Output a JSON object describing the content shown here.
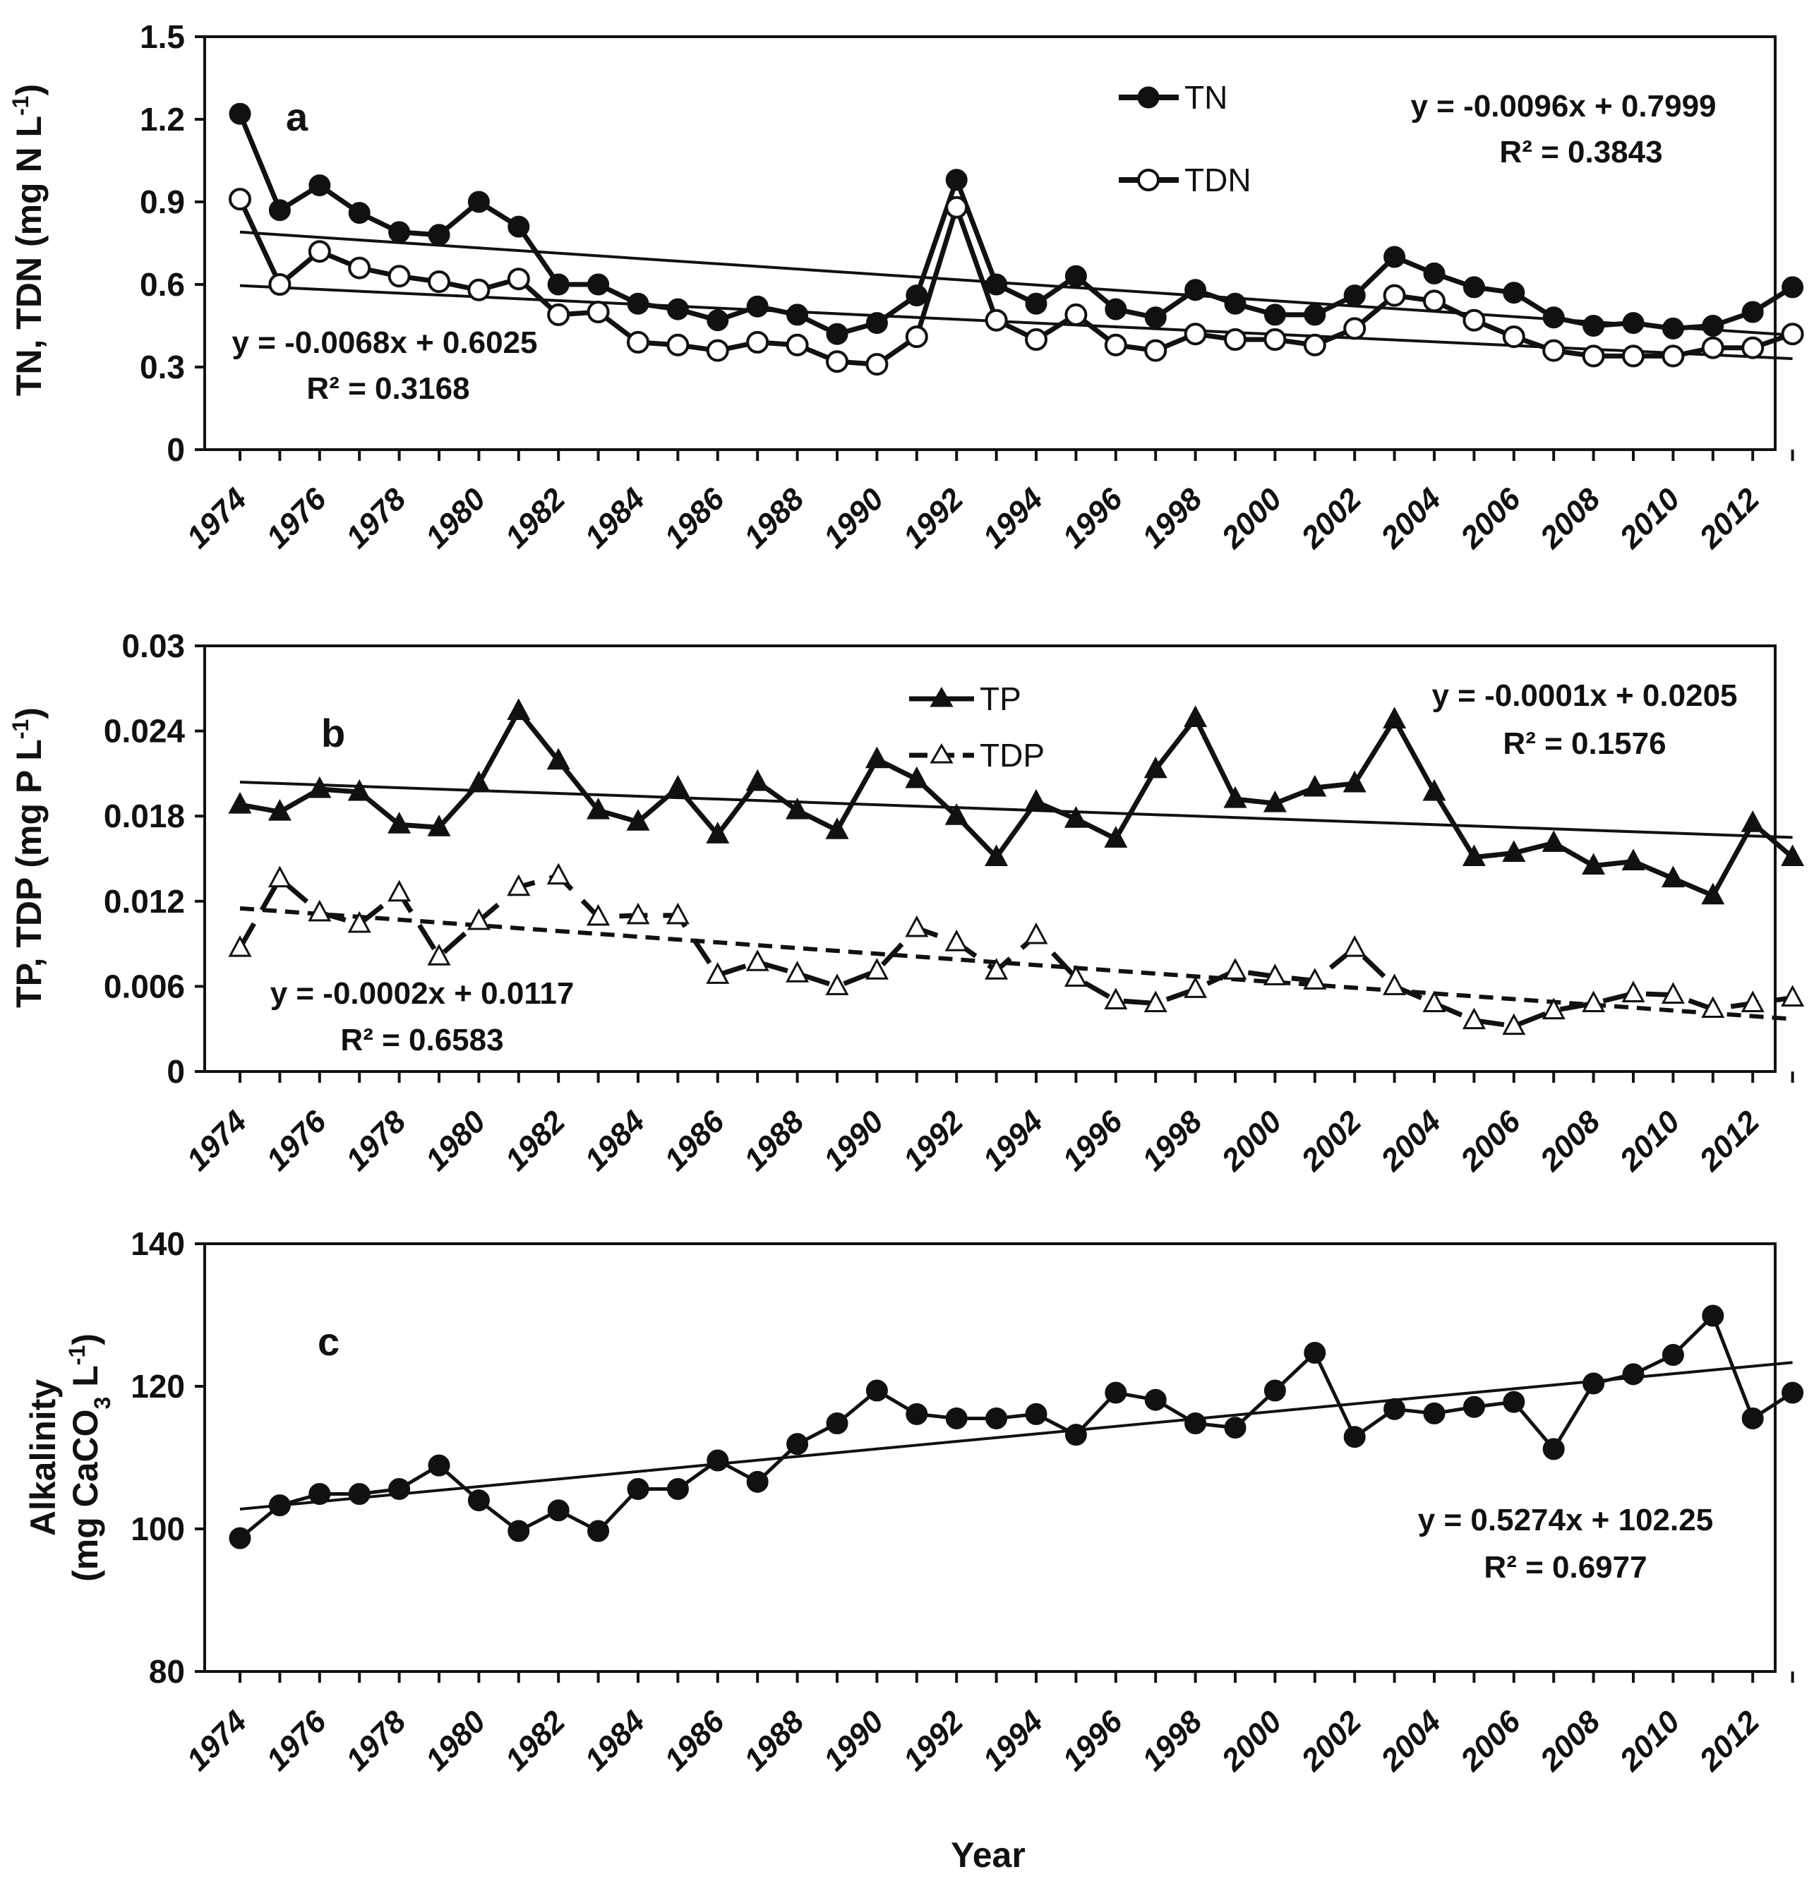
{
  "x_axis_title": "Year",
  "chart_data": [
    {
      "panel": "a",
      "type": "line",
      "ylabel": "TN, TDN (mg N L-1)",
      "ylim": [
        0,
        1.5
      ],
      "yticks": [
        "0",
        "0.3",
        "0.6",
        "0.9",
        "1.2",
        "1.5"
      ],
      "x": [
        1974,
        1975,
        1976,
        1977,
        1978,
        1979,
        1980,
        1981,
        1982,
        1983,
        1984,
        1985,
        1986,
        1987,
        1988,
        1989,
        1990,
        1991,
        1992,
        1993,
        1994,
        1995,
        1996,
        1997,
        1998,
        1999,
        2000,
        2001,
        2002,
        2003,
        2004,
        2005,
        2006,
        2007,
        2008,
        2009,
        2010,
        2011,
        2012,
        2013
      ],
      "xtick_labels": [
        "1974",
        "1976",
        "1978",
        "1980",
        "1982",
        "1984",
        "1986",
        "1988",
        "1990",
        "1992",
        "1994",
        "1996",
        "1998",
        "2000",
        "2002",
        "2004",
        "2006",
        "2008",
        "2010",
        "2012"
      ],
      "series": [
        {
          "name": "TN",
          "marker": "filled-circle",
          "values": [
            1.22,
            0.87,
            0.96,
            0.86,
            0.79,
            0.78,
            0.9,
            0.81,
            0.6,
            0.6,
            0.53,
            0.51,
            0.47,
            0.52,
            0.49,
            0.42,
            0.46,
            0.56,
            0.98,
            0.6,
            0.53,
            0.63,
            0.51,
            0.48,
            0.58,
            0.53,
            0.49,
            0.49,
            0.56,
            0.7,
            0.64,
            0.59,
            0.57,
            0.48,
            0.45,
            0.46,
            0.44,
            0.45,
            0.5,
            0.59
          ]
        },
        {
          "name": "TDN",
          "marker": "open-circle",
          "values": [
            0.91,
            0.6,
            0.72,
            0.66,
            0.63,
            0.61,
            0.58,
            0.62,
            0.49,
            0.5,
            0.39,
            0.38,
            0.36,
            0.39,
            0.38,
            0.32,
            0.31,
            0.41,
            0.88,
            0.47,
            0.4,
            0.49,
            0.38,
            0.36,
            0.42,
            0.4,
            0.4,
            0.38,
            0.44,
            0.56,
            0.54,
            0.47,
            0.41,
            0.36,
            0.34,
            0.34,
            0.34,
            0.37,
            0.37,
            0.42
          ]
        }
      ],
      "trendlines": [
        {
          "series": "TN",
          "slope": -0.0096,
          "intercept": 0.7999,
          "equation": "y = -0.0096x + 0.7999",
          "r2": "R² = 0.3843"
        },
        {
          "series": "TDN",
          "slope": -0.0068,
          "intercept": 0.6025,
          "equation": "y = -0.0068x + 0.6025",
          "r2": "R² = 0.3168"
        }
      ]
    },
    {
      "panel": "b",
      "type": "line",
      "ylabel": "TP, TDP (mg P L-1)",
      "ylim": [
        0,
        0.03
      ],
      "yticks": [
        "0",
        "0.006",
        "0.012",
        "0.018",
        "0.024",
        "0.03"
      ],
      "x": [
        1974,
        1975,
        1976,
        1977,
        1978,
        1979,
        1980,
        1981,
        1982,
        1983,
        1984,
        1985,
        1986,
        1987,
        1988,
        1989,
        1990,
        1991,
        1992,
        1993,
        1994,
        1995,
        1996,
        1997,
        1998,
        1999,
        2000,
        2001,
        2002,
        2003,
        2004,
        2005,
        2006,
        2007,
        2008,
        2009,
        2010,
        2011,
        2012,
        2013
      ],
      "xtick_labels": [
        "1974",
        "1976",
        "1978",
        "1980",
        "1982",
        "1984",
        "1986",
        "1988",
        "1990",
        "1992",
        "1994",
        "1996",
        "1998",
        "2000",
        "2002",
        "2004",
        "2006",
        "2008",
        "2010",
        "2012"
      ],
      "series": [
        {
          "name": "TP",
          "marker": "filled-triangle",
          "line": "solid",
          "values": [
            0.0188,
            0.0183,
            0.0199,
            0.0197,
            0.0174,
            0.0172,
            0.0203,
            0.0254,
            0.0219,
            0.0184,
            0.0176,
            0.02,
            0.0167,
            0.0204,
            0.0184,
            0.017,
            0.022,
            0.0206,
            0.018,
            0.0151,
            0.019,
            0.0178,
            0.0164,
            0.0213,
            0.0249,
            0.0192,
            0.0189,
            0.02,
            0.0203,
            0.0248,
            0.0197,
            0.0151,
            0.0154,
            0.0161,
            0.0145,
            0.0148,
            0.0136,
            0.0124,
            0.0175,
            0.0151
          ]
        },
        {
          "name": "TDP",
          "marker": "open-triangle",
          "line": "dashed",
          "values": [
            0.0087,
            0.0136,
            0.0112,
            0.0104,
            0.0126,
            0.0081,
            0.0106,
            0.013,
            0.0138,
            0.0109,
            0.011,
            0.011,
            0.0068,
            0.0077,
            0.0069,
            0.006,
            0.0071,
            0.0101,
            0.0091,
            0.0071,
            0.0096,
            0.0066,
            0.005,
            0.0048,
            0.0058,
            0.0071,
            0.0067,
            0.0064,
            0.0087,
            0.006,
            0.0048,
            0.0036,
            0.0032,
            0.0043,
            0.0048,
            0.0055,
            0.0054,
            0.0044,
            0.0048,
            0.0052
          ]
        }
      ],
      "trendlines": [
        {
          "series": "TP",
          "slope": -0.0001,
          "intercept": 0.0205,
          "equation": "y = -0.0001x + 0.0205",
          "r2": "R² = 0.1576"
        },
        {
          "series": "TDP",
          "slope": -0.0002,
          "intercept": 0.0117,
          "equation": "y = -0.0002x + 0.0117",
          "r2": "R² = 0.6583"
        }
      ]
    },
    {
      "panel": "c",
      "type": "line",
      "ylabel_line1": "Alkalinity",
      "ylabel_line2": "(mg CaCO3 L-1)",
      "ylim": [
        80,
        140
      ],
      "yticks": [
        "80",
        "100",
        "120",
        "140"
      ],
      "x": [
        1974,
        1975,
        1976,
        1977,
        1978,
        1979,
        1980,
        1981,
        1982,
        1983,
        1984,
        1985,
        1986,
        1987,
        1988,
        1989,
        1990,
        1991,
        1992,
        1993,
        1994,
        1995,
        1996,
        1997,
        1998,
        1999,
        2000,
        2001,
        2002,
        2003,
        2004,
        2005,
        2006,
        2007,
        2008,
        2009,
        2010,
        2011,
        2012,
        2013
      ],
      "xtick_labels": [
        "1974",
        "1976",
        "1978",
        "1980",
        "1982",
        "1984",
        "1986",
        "1988",
        "1990",
        "1992",
        "1994",
        "1996",
        "1998",
        "2000",
        "2002",
        "2004",
        "2006",
        "2008",
        "2010",
        "2012"
      ],
      "series": [
        {
          "name": "Alkalinity",
          "marker": "filled-circle",
          "values": [
            98.7,
            103.3,
            104.9,
            104.9,
            105.6,
            108.9,
            104.0,
            99.7,
            102.6,
            99.7,
            105.6,
            105.6,
            109.6,
            106.6,
            111.9,
            114.8,
            119.4,
            116.1,
            115.5,
            115.5,
            116.1,
            113.2,
            119.1,
            118.1,
            114.8,
            114.2,
            119.4,
            124.7,
            112.9,
            116.8,
            116.2,
            117.1,
            117.8,
            111.2,
            120.4,
            121.7,
            124.4,
            129.9,
            115.5,
            119.1
          ]
        }
      ],
      "trendlines": [
        {
          "series": "Alkalinity",
          "slope": 0.5274,
          "intercept": 102.25,
          "equation": "y = 0.5274x + 102.25",
          "r2": "R² = 0.6977"
        }
      ]
    }
  ]
}
